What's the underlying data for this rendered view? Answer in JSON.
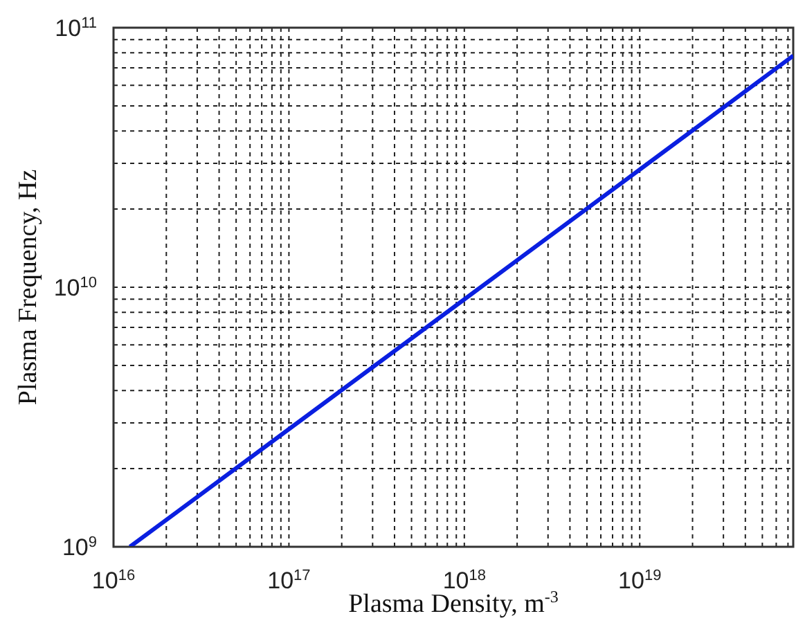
{
  "chart_data": {
    "type": "line",
    "xlabel": "Plasma Density, m$^{-3}$",
    "ylabel": "Plasma Frequency, Hz",
    "log": "xy",
    "grid": true,
    "line_style": "solid",
    "marker": "none",
    "xlim": [
      1e+16,
      7.5e+19
    ],
    "ylim": [
      1000000000.0,
      100000000000.0
    ],
    "xticks": [
      {
        "value": 1e+16,
        "label": "10$^{16}$"
      },
      {
        "value": 2e+16,
        "label": null
      },
      {
        "value": 3e+16,
        "label": null
      },
      {
        "value": 4e+16,
        "label": null
      },
      {
        "value": 5e+16,
        "label": null
      },
      {
        "value": 6e+16,
        "label": null
      },
      {
        "value": 7e+16,
        "label": null
      },
      {
        "value": 8e+16,
        "label": null
      },
      {
        "value": 9e+16,
        "label": null
      },
      {
        "value": 1e+17,
        "label": "10$^{17}$"
      },
      {
        "value": 2e+17,
        "label": null
      },
      {
        "value": 3e+17,
        "label": null
      },
      {
        "value": 4e+17,
        "label": null
      },
      {
        "value": 5e+17,
        "label": null
      },
      {
        "value": 6e+17,
        "label": null
      },
      {
        "value": 7e+17,
        "label": null
      },
      {
        "value": 8e+17,
        "label": null
      },
      {
        "value": 9e+17,
        "label": null
      },
      {
        "value": 1e+18,
        "label": "10$^{18}$"
      },
      {
        "value": 2e+18,
        "label": null
      },
      {
        "value": 3e+18,
        "label": null
      },
      {
        "value": 4e+18,
        "label": null
      },
      {
        "value": 5e+18,
        "label": null
      },
      {
        "value": 6e+18,
        "label": null
      },
      {
        "value": 7e+18,
        "label": null
      },
      {
        "value": 8e+18,
        "label": null
      },
      {
        "value": 9e+18,
        "label": null
      },
      {
        "value": 1e+19,
        "label": "10$^{19}$"
      },
      {
        "value": 2e+19,
        "label": null
      },
      {
        "value": 3e+19,
        "label": null
      },
      {
        "value": 4e+19,
        "label": null
      },
      {
        "value": 5e+19,
        "label": null
      },
      {
        "value": 6e+19,
        "label": null
      },
      {
        "value": 7e+19,
        "label": null
      }
    ],
    "yticks": [
      {
        "value": 1000000000.0,
        "label": "10$^{9}$"
      },
      {
        "value": 2000000000.0,
        "label": null
      },
      {
        "value": 3000000000.0,
        "label": null
      },
      {
        "value": 4000000000.0,
        "label": null
      },
      {
        "value": 5000000000.0,
        "label": null
      },
      {
        "value": 6000000000.0,
        "label": null
      },
      {
        "value": 7000000000.0,
        "label": null
      },
      {
        "value": 8000000000.0,
        "label": null
      },
      {
        "value": 9000000000.0,
        "label": null
      },
      {
        "value": 10000000000.0,
        "label": "10$^{10}$"
      },
      {
        "value": 20000000000.0,
        "label": null
      },
      {
        "value": 30000000000.0,
        "label": null
      },
      {
        "value": 40000000000.0,
        "label": null
      },
      {
        "value": 50000000000.0,
        "label": null
      },
      {
        "value": 60000000000.0,
        "label": null
      },
      {
        "value": 70000000000.0,
        "label": null
      },
      {
        "value": 80000000000.0,
        "label": null
      },
      {
        "value": 90000000000.0,
        "label": null
      },
      {
        "value": 100000000000.0,
        "label": "10$^{11}$"
      }
    ],
    "series": [
      {
        "color": "#0a1fe0",
        "x": [
          1.24e+16,
          1e+17,
          1e+18,
          1e+19,
          7.5e+19
        ],
        "values": [
          1000000000.0,
          2840000000.0,
          8980000000.0,
          28400000000.0,
          78000000000.0
        ]
      }
    ]
  }
}
